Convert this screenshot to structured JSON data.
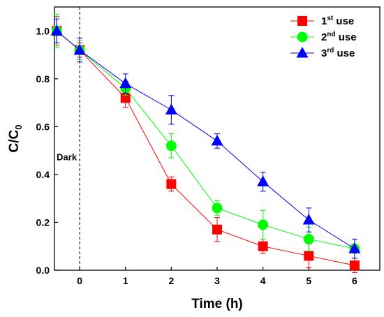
{
  "chart_data": {
    "type": "line",
    "title": "",
    "xlabel": "Time (h)",
    "ylabel_main": "C/C",
    "ylabel_sub": "0",
    "xlim": [
      -0.55,
      6.55
    ],
    "ylim": [
      0,
      1.1
    ],
    "x_ticks": [
      0,
      1,
      2,
      3,
      4,
      5,
      6
    ],
    "y_ticks": [
      0.0,
      0.2,
      0.4,
      0.6,
      0.8,
      1.0
    ],
    "y_tick_labels": [
      "0.0",
      "0.2",
      "0.4",
      "0.6",
      "0.8",
      "1.0"
    ],
    "grid": false,
    "legend_position": "top-right",
    "annotation": {
      "text": "Dark",
      "x": 0
    },
    "x": [
      -0.5,
      0,
      1,
      2,
      3,
      4,
      5,
      6
    ],
    "series": [
      {
        "name": "1st use",
        "name_main": "1",
        "name_sup": "st",
        "name_tail": " use",
        "color": "#ff0000",
        "marker": "square",
        "values": [
          1.0,
          0.92,
          0.72,
          0.36,
          0.17,
          0.1,
          0.06,
          0.02
        ],
        "errors": [
          0.06,
          0.03,
          0.04,
          0.03,
          0.05,
          0.03,
          0.05,
          0.03
        ]
      },
      {
        "name": "2nd use",
        "name_main": "2",
        "name_sup": "nd",
        "name_tail": " use",
        "color": "#00ff00",
        "marker": "circle",
        "values": [
          1.0,
          0.92,
          0.76,
          0.52,
          0.26,
          0.19,
          0.13,
          0.09
        ],
        "errors": [
          0.07,
          0.04,
          0.03,
          0.05,
          0.03,
          0.06,
          0.05,
          0.04
        ]
      },
      {
        "name": "3rd use",
        "name_main": "3",
        "name_sup": "rd",
        "name_tail": " use",
        "color": "#0000ff",
        "marker": "triangle",
        "values": [
          1.0,
          0.92,
          0.78,
          0.67,
          0.54,
          0.37,
          0.21,
          0.09
        ],
        "errors": [
          0.05,
          0.05,
          0.04,
          0.06,
          0.03,
          0.04,
          0.05,
          0.04
        ]
      }
    ]
  }
}
